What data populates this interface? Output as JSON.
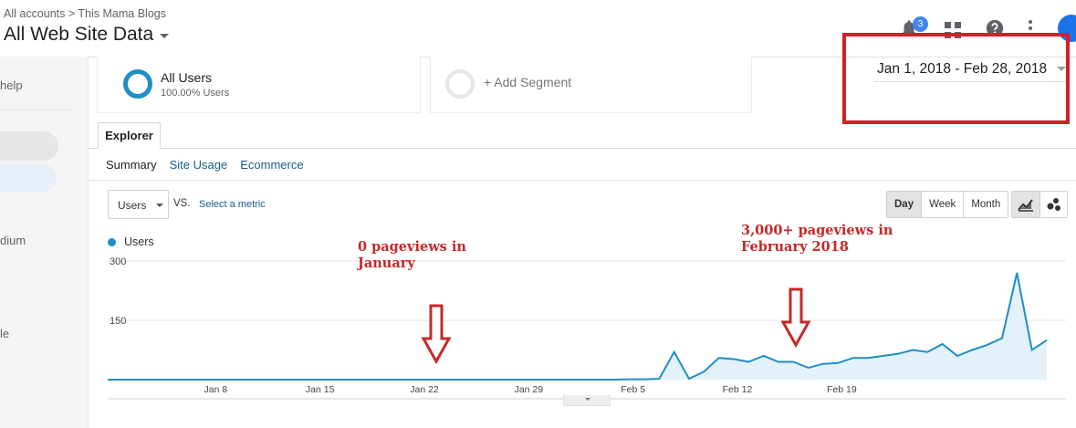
{
  "header": {
    "breadcrumb": "All accounts > This Mama Blogs",
    "view_title": "All Web Site Data",
    "notification_count": "3"
  },
  "sidebar": {
    "help_label": "help",
    "medium_label": "dium",
    "le_label": "le"
  },
  "segments": [
    {
      "name": "All Users",
      "sub": "100.00% Users"
    },
    {
      "name": "+ Add Segment"
    }
  ],
  "date_range": "Jan 1, 2018 - Feb 28, 2018",
  "tabs": {
    "explorer": "Explorer"
  },
  "subtabs": {
    "summary": "Summary",
    "site_usage": "Site Usage",
    "ecommerce": "Ecommerce"
  },
  "metric": {
    "selected": "Users",
    "vs": "VS.",
    "select_metric": "Select a metric"
  },
  "period_buttons": {
    "day": "Day",
    "week": "Week",
    "month": "Month",
    "active": "Day"
  },
  "annotations": {
    "jan_line1": "0 pageviews in",
    "jan_line2": "January",
    "feb_line1": "3,000+ pageviews in",
    "feb_line2": "February 2018"
  },
  "colors": {
    "series": "#1f8ec6",
    "fill": "#e3f1f9",
    "annotation": "#c62828",
    "highlight_box": "#d31f26"
  },
  "icons": {
    "notifications": "bell-icon",
    "apps": "apps-grid-icon",
    "help": "help-icon",
    "more": "more-vert-icon",
    "line_chart": "line-chart-icon",
    "motion_chart": "motion-chart-icon"
  },
  "chart_data": {
    "type": "area",
    "series": [
      {
        "name": "Users",
        "values": [
          0,
          0,
          0,
          0,
          0,
          0,
          0,
          0,
          0,
          0,
          0,
          0,
          0,
          0,
          0,
          0,
          0,
          0,
          0,
          0,
          0,
          0,
          0,
          0,
          0,
          0,
          0,
          0,
          0,
          0,
          0,
          0,
          0,
          0,
          0,
          1,
          1,
          2,
          70,
          2,
          20,
          55,
          52,
          45,
          60,
          45,
          45,
          30,
          40,
          42,
          55,
          55,
          60,
          65,
          75,
          70,
          90,
          60,
          75,
          88,
          105,
          270,
          75,
          100
        ]
      }
    ],
    "x_start": "Jan 1, 2018",
    "x_end": "Feb 28, 2018",
    "x_ticks": [
      "Jan 8",
      "Jan 15",
      "Jan 22",
      "Jan 29",
      "Feb 5",
      "Feb 12",
      "Feb 19"
    ],
    "y_ticks": [
      "300",
      "150"
    ],
    "ylim": [
      0,
      300
    ],
    "grid": true,
    "legend": "top-left"
  }
}
